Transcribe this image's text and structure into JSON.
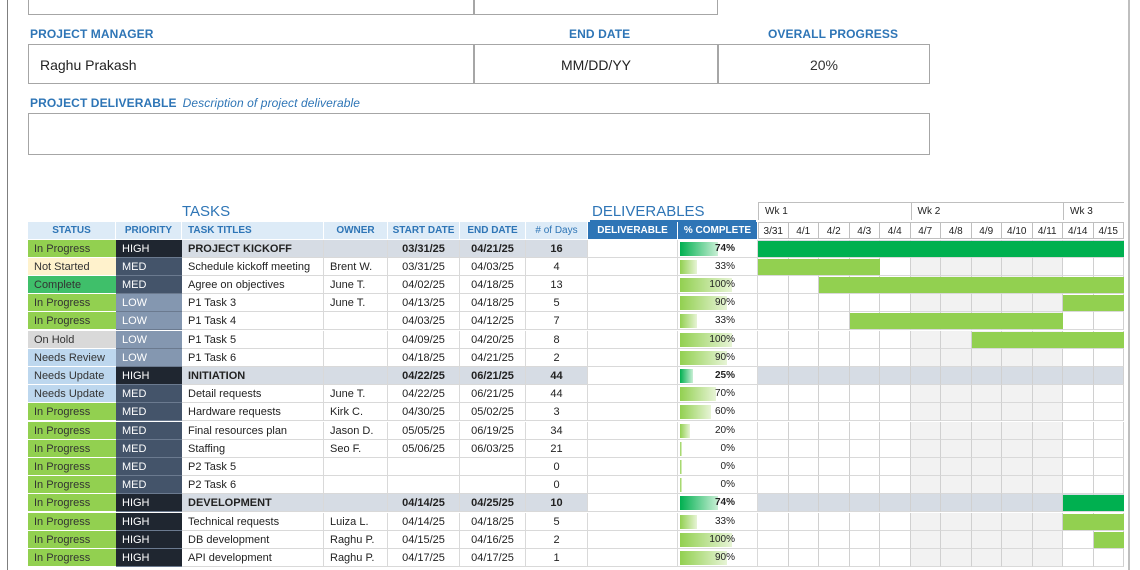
{
  "fields": {
    "project_manager_label": "PROJECT MANAGER",
    "project_manager_value": "Raghu Prakash",
    "end_date_label": "END DATE",
    "end_date_value": "MM/DD/YY",
    "overall_progress_label": "OVERALL PROGRESS",
    "overall_progress_value": "20%",
    "deliverable_label": "PROJECT DELIVERABLE",
    "deliverable_hint": "Description of project deliverable"
  },
  "sections": {
    "tasks": "TASKS",
    "deliverables": "DELIVERABLES"
  },
  "headers": {
    "status": "STATUS",
    "priority": "PRIORITY",
    "task_titles": "TASK TITLES",
    "owner": "OWNER",
    "start_date": "START DATE",
    "end_date": "END DATE",
    "days": "# of Days",
    "deliverable": "DELIVERABLE",
    "complete": "% COMPLETE"
  },
  "weeks": [
    "Wk 1",
    "Wk 2",
    "Wk 3"
  ],
  "days": [
    "3/31",
    "4/1",
    "4/2",
    "4/3",
    "4/4",
    "4/7",
    "4/8",
    "4/9",
    "4/10",
    "4/11",
    "4/14",
    "4/15"
  ],
  "colors": {
    "accent": "#2e75b6",
    "header_blue": "#ddebf7",
    "header_dark": "#2e75b6",
    "green_dark": "#00b050",
    "green_light": "#92d050",
    "phase_row": "#d6dce4"
  },
  "rows": [
    {
      "status": "In Progress",
      "priority": "HIGH",
      "title": "PROJECT KICKOFF",
      "owner": "",
      "start": "03/31/25",
      "end": "04/21/25",
      "days": "16",
      "pct": "74%",
      "pct_value": 0.74,
      "phase": true,
      "gantt_start": 0,
      "gantt_len": 12
    },
    {
      "status": "Not Started",
      "priority": "MED",
      "title": "Schedule kickoff meeting",
      "owner": "Brent W.",
      "start": "03/31/25",
      "end": "04/03/25",
      "days": "4",
      "pct": "33%",
      "pct_value": 0.33,
      "phase": false,
      "gantt_start": 0,
      "gantt_len": 4
    },
    {
      "status": "Complete",
      "priority": "MED",
      "title": "Agree on objectives",
      "owner": "June T.",
      "start": "04/02/25",
      "end": "04/18/25",
      "days": "13",
      "pct": "100%",
      "pct_value": 1.0,
      "phase": false,
      "gantt_start": 2,
      "gantt_len": 10
    },
    {
      "status": "In Progress",
      "priority": "LOW",
      "title": "P1 Task 3",
      "owner": "June T.",
      "start": "04/13/25",
      "end": "04/18/25",
      "days": "5",
      "pct": "90%",
      "pct_value": 0.9,
      "phase": false,
      "gantt_start": 10,
      "gantt_len": 2
    },
    {
      "status": "In Progress",
      "priority": "LOW",
      "title": "P1 Task 4",
      "owner": "",
      "start": "04/03/25",
      "end": "04/12/25",
      "days": "7",
      "pct": "33%",
      "pct_value": 0.33,
      "phase": false,
      "gantt_start": 3,
      "gantt_len": 7
    },
    {
      "status": "On Hold",
      "priority": "LOW",
      "title": "P1 Task 5",
      "owner": "",
      "start": "04/09/25",
      "end": "04/20/25",
      "days": "8",
      "pct": "100%",
      "pct_value": 1.0,
      "phase": false,
      "gantt_start": 7,
      "gantt_len": 5
    },
    {
      "status": "Needs Review",
      "priority": "LOW",
      "title": "P1 Task 6",
      "owner": "",
      "start": "04/18/25",
      "end": "04/21/25",
      "days": "2",
      "pct": "90%",
      "pct_value": 0.9,
      "phase": false,
      "gantt_start": -1,
      "gantt_len": 0
    },
    {
      "status": "Needs Update",
      "priority": "HIGH",
      "title": "INITIATION",
      "owner": "",
      "start": "04/22/25",
      "end": "06/21/25",
      "days": "44",
      "pct": "25%",
      "pct_value": 0.25,
      "phase": true,
      "gantt_start": -1,
      "gantt_len": 0
    },
    {
      "status": "Needs Update",
      "priority": "MED",
      "title": "Detail requests",
      "owner": "June T.",
      "start": "04/22/25",
      "end": "06/21/25",
      "days": "44",
      "pct": "70%",
      "pct_value": 0.7,
      "phase": false,
      "gantt_start": -1,
      "gantt_len": 0
    },
    {
      "status": "In Progress",
      "priority": "MED",
      "title": "Hardware requests",
      "owner": "Kirk C.",
      "start": "04/30/25",
      "end": "05/02/25",
      "days": "3",
      "pct": "60%",
      "pct_value": 0.6,
      "phase": false,
      "gantt_start": -1,
      "gantt_len": 0
    },
    {
      "status": "In Progress",
      "priority": "MED",
      "title": "Final resources plan",
      "owner": "Jason D.",
      "start": "05/05/25",
      "end": "06/19/25",
      "days": "34",
      "pct": "20%",
      "pct_value": 0.2,
      "phase": false,
      "gantt_start": -1,
      "gantt_len": 0
    },
    {
      "status": "In Progress",
      "priority": "MED",
      "title": "Staffing",
      "owner": "Seo F.",
      "start": "05/06/25",
      "end": "06/03/25",
      "days": "21",
      "pct": "0%",
      "pct_value": 0.0,
      "phase": false,
      "gantt_start": -1,
      "gantt_len": 0
    },
    {
      "status": "In Progress",
      "priority": "MED",
      "title": "P2 Task 5",
      "owner": "",
      "start": "",
      "end": "",
      "days": "0",
      "pct": "0%",
      "pct_value": 0.0,
      "phase": false,
      "gantt_start": -1,
      "gantt_len": 0
    },
    {
      "status": "In Progress",
      "priority": "MED",
      "title": "P2 Task 6",
      "owner": "",
      "start": "",
      "end": "",
      "days": "0",
      "pct": "0%",
      "pct_value": 0.0,
      "phase": false,
      "gantt_start": -1,
      "gantt_len": 0
    },
    {
      "status": "In Progress",
      "priority": "HIGH",
      "title": "DEVELOPMENT",
      "owner": "",
      "start": "04/14/25",
      "end": "04/25/25",
      "days": "10",
      "pct": "74%",
      "pct_value": 0.74,
      "phase": true,
      "gantt_start": 10,
      "gantt_len": 2
    },
    {
      "status": "In Progress",
      "priority": "HIGH",
      "title": "Technical requests",
      "owner": "Luiza L.",
      "start": "04/14/25",
      "end": "04/18/25",
      "days": "5",
      "pct": "33%",
      "pct_value": 0.33,
      "phase": false,
      "gantt_start": 10,
      "gantt_len": 2
    },
    {
      "status": "In Progress",
      "priority": "HIGH",
      "title": "DB development",
      "owner": "Raghu P.",
      "start": "04/15/25",
      "end": "04/16/25",
      "days": "2",
      "pct": "100%",
      "pct_value": 1.0,
      "phase": false,
      "gantt_start": 11,
      "gantt_len": 1
    },
    {
      "status": "In Progress",
      "priority": "HIGH",
      "title": "API development",
      "owner": "Raghu P.",
      "start": "04/17/25",
      "end": "04/17/25",
      "days": "1",
      "pct": "90%",
      "pct_value": 0.9,
      "phase": false,
      "gantt_start": -1,
      "gantt_len": 0
    }
  ]
}
